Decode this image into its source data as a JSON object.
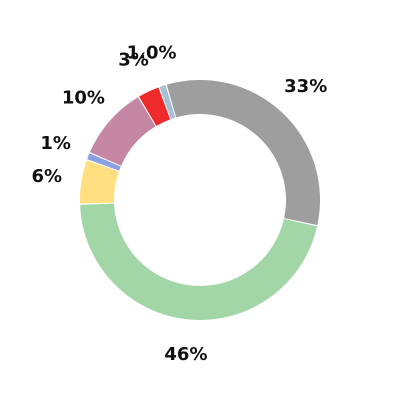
{
  "chart_data": {
    "type": "pie",
    "variant": "donut",
    "slices": [
      {
        "label": "1.0%",
        "value": 1.0,
        "color": "#a6c0d6"
      },
      {
        "label": "33%",
        "value": 33,
        "color": "#9e9e9e"
      },
      {
        "label": "46%",
        "value": 46,
        "color": "#a3d6a6"
      },
      {
        "label": "6%",
        "value": 6,
        "color": "#ffdf80"
      },
      {
        "label": "1%",
        "value": 1,
        "color": "#8c9fe0"
      },
      {
        "label": "10%",
        "value": 10,
        "color": "#c687a4"
      },
      {
        "label": "3%",
        "value": 3,
        "color": "#ee2a2a"
      }
    ],
    "legend": "none"
  }
}
